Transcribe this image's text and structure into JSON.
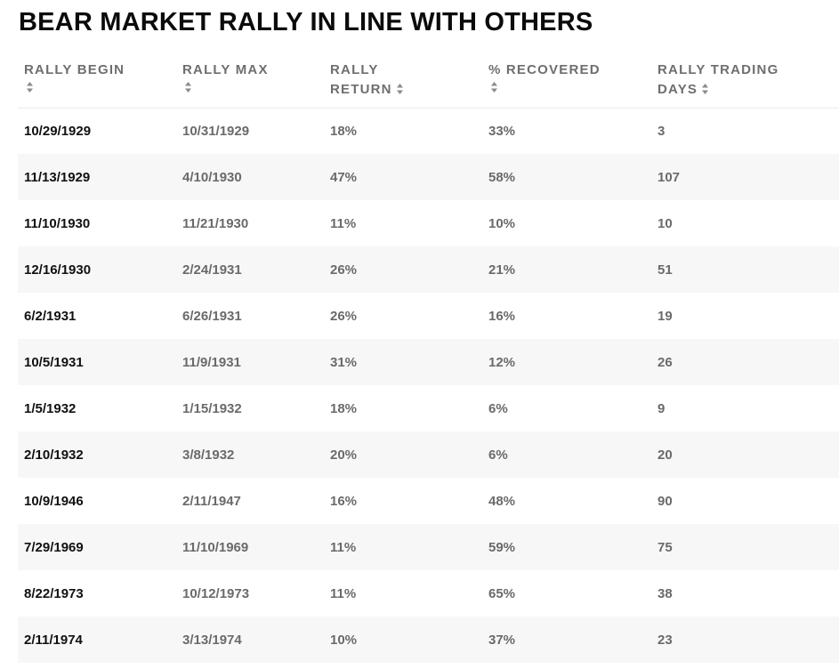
{
  "title": "BEAR MARKET RALLY IN LINE WITH OTHERS",
  "table": {
    "headers": [
      {
        "line1": "RALLY BEGIN",
        "line2": ""
      },
      {
        "line1": "RALLY MAX",
        "line2": ""
      },
      {
        "line1": "RALLY",
        "line2": "RETURN"
      },
      {
        "line1": "% RECOVERED",
        "line2": ""
      },
      {
        "line1": "RALLY TRADING",
        "line2": "DAYS"
      }
    ],
    "rows": [
      {
        "begin": "10/29/1929",
        "max": "10/31/1929",
        "return": "18%",
        "recovered": "33%",
        "days": "3"
      },
      {
        "begin": "11/13/1929",
        "max": "4/10/1930",
        "return": "47%",
        "recovered": "58%",
        "days": "107"
      },
      {
        "begin": "11/10/1930",
        "max": "11/21/1930",
        "return": "11%",
        "recovered": "10%",
        "days": "10"
      },
      {
        "begin": "12/16/1930",
        "max": "2/24/1931",
        "return": "26%",
        "recovered": "21%",
        "days": "51"
      },
      {
        "begin": "6/2/1931",
        "max": "6/26/1931",
        "return": "26%",
        "recovered": "16%",
        "days": "19"
      },
      {
        "begin": "10/5/1931",
        "max": "11/9/1931",
        "return": "31%",
        "recovered": "12%",
        "days": "26"
      },
      {
        "begin": "1/5/1932",
        "max": "1/15/1932",
        "return": "18%",
        "recovered": "6%",
        "days": "9"
      },
      {
        "begin": "2/10/1932",
        "max": "3/8/1932",
        "return": "20%",
        "recovered": "6%",
        "days": "20"
      },
      {
        "begin": "10/9/1946",
        "max": "2/11/1947",
        "return": "16%",
        "recovered": "48%",
        "days": "90"
      },
      {
        "begin": "7/29/1969",
        "max": "11/10/1969",
        "return": "11%",
        "recovered": "59%",
        "days": "75"
      },
      {
        "begin": "8/22/1973",
        "max": "10/12/1973",
        "return": "11%",
        "recovered": "65%",
        "days": "38"
      },
      {
        "begin": "2/11/1974",
        "max": "3/13/1974",
        "return": "10%",
        "recovered": "37%",
        "days": "23"
      }
    ]
  },
  "colors": {
    "title": "#0b0b0b",
    "header_text": "#6e6e6e",
    "first_col_text": "#111111",
    "cell_text": "#6a6a6a",
    "alt_row_bg": "#f7f7f7"
  },
  "icons": {
    "sort": "sort-updown-icon"
  }
}
